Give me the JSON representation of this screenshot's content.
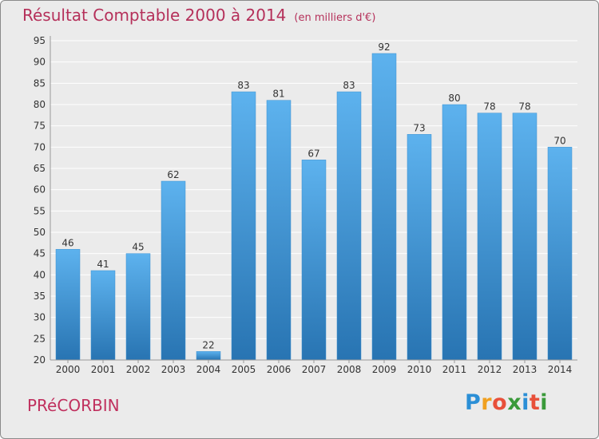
{
  "chart_data": {
    "type": "bar",
    "title": "Résultat Comptable 2000 à 2014",
    "subtitle": "(en milliers d'€)",
    "categories": [
      "2000",
      "2001",
      "2002",
      "2003",
      "2004",
      "2005",
      "2006",
      "2007",
      "2008",
      "2009",
      "2010",
      "2011",
      "2012",
      "2013",
      "2014"
    ],
    "values": [
      46,
      41,
      45,
      62,
      22,
      83,
      81,
      67,
      83,
      92,
      73,
      80,
      78,
      78,
      70
    ],
    "ylim": [
      20,
      95
    ],
    "yticks": [
      20,
      25,
      30,
      35,
      40,
      45,
      50,
      55,
      60,
      65,
      70,
      75,
      80,
      85,
      90,
      95
    ],
    "grid": true,
    "xlabel": "",
    "ylabel": ""
  },
  "town": "PRéCORBIN",
  "logo": {
    "letters": [
      "P",
      "r",
      "o",
      "x",
      "i",
      "t",
      "i"
    ],
    "colors": [
      "#2b8fd6",
      "#f0a020",
      "#e8503a",
      "#3a9a3a",
      "#2b8fd6",
      "#e8503a",
      "#3a9a3a"
    ]
  },
  "colors": {
    "title": "#b5305a",
    "bar_light": "#5aaeea",
    "bar_dark": "#2a76b4",
    "grid": "#ffffff",
    "background": "#ebebeb"
  }
}
